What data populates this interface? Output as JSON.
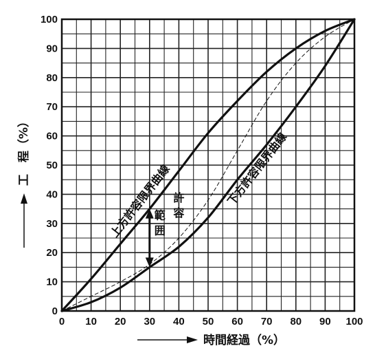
{
  "chart_data": {
    "type": "line",
    "xlabel": "時間経過（%）",
    "ylabel": "工　程（%）",
    "xlim": [
      0,
      100
    ],
    "ylim": [
      0,
      100
    ],
    "x_ticks": [
      "0",
      "10",
      "20",
      "30",
      "40",
      "50",
      "60",
      "70",
      "80",
      "90",
      "100"
    ],
    "y_ticks": [
      "0",
      "10",
      "20",
      "30",
      "40",
      "50",
      "60",
      "70",
      "80",
      "90",
      "100"
    ],
    "grid": true,
    "series": [
      {
        "name": "上方許容限界曲線",
        "style": "solid-bold",
        "x": [
          0,
          10,
          20,
          30,
          40,
          50,
          60,
          70,
          80,
          90,
          100
        ],
        "y": [
          0,
          11,
          23,
          35,
          48,
          61,
          72,
          82,
          90,
          96,
          100
        ]
      },
      {
        "name": "下方許容限界曲線",
        "style": "solid-bold",
        "x": [
          0,
          10,
          20,
          30,
          40,
          50,
          60,
          70,
          80,
          90,
          100
        ],
        "y": [
          0,
          3,
          8,
          15,
          22,
          32,
          45,
          57,
          70,
          84,
          100
        ]
      },
      {
        "style": "dashed-thin",
        "x": [
          0,
          10,
          20,
          30,
          40,
          50,
          60,
          70,
          80,
          90,
          100
        ],
        "y": [
          0,
          5,
          10,
          16,
          25,
          38,
          55,
          72,
          85,
          94,
          100
        ]
      }
    ],
    "annotations": {
      "range_arrow": {
        "x": 30,
        "y_from": 15,
        "y_to": 35,
        "label_left": "範囲",
        "label_right": "許容"
      }
    }
  }
}
